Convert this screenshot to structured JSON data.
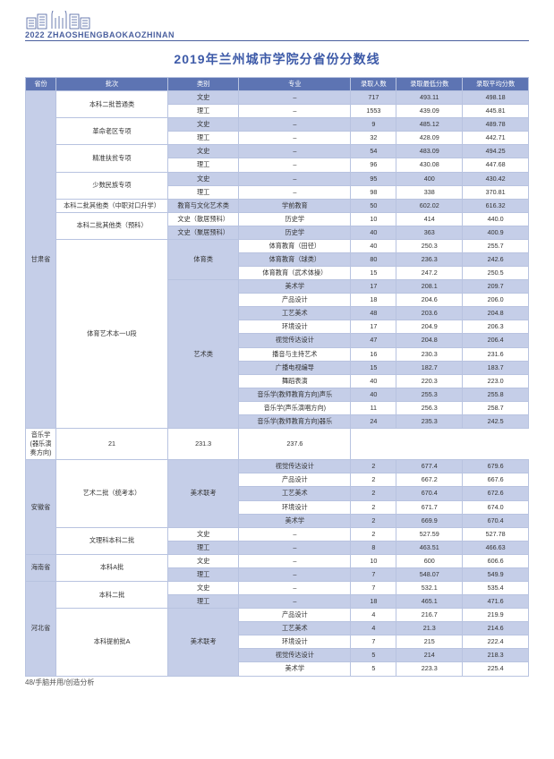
{
  "brand": "2022 ZHAOSHENGBAOKAOZHINAN",
  "title": "2019年兰州城市学院分省份分数线",
  "footer": "48/手脑并用/创造分析",
  "colors": {
    "header_bg": "#5d74b3",
    "shade_bg": "#c5cee8",
    "border": "#b8c3e0",
    "title_color": "#3d5aa8",
    "brand_color": "#4a5f9e"
  },
  "columns": [
    "省份",
    "批次",
    "类别",
    "专业",
    "录取人数",
    "录取最低分数",
    "录取平均分数"
  ],
  "rows": [
    {
      "prov": "甘肃省",
      "prov_span": 25,
      "batch": "本科二批普通类",
      "batch_span": 2,
      "type": "文史",
      "type_span": 1,
      "major": "–",
      "num": "717",
      "min": "493.11",
      "avg": "498.18",
      "shade": true
    },
    {
      "type": "理工",
      "type_span": 1,
      "major": "–",
      "num": "1553",
      "min": "439.09",
      "avg": "445.81",
      "shade": false
    },
    {
      "batch": "革命老区专项",
      "batch_span": 2,
      "type": "文史",
      "type_span": 1,
      "major": "–",
      "num": "9",
      "min": "485.12",
      "avg": "489.78",
      "shade": true
    },
    {
      "type": "理工",
      "type_span": 1,
      "major": "–",
      "num": "32",
      "min": "428.09",
      "avg": "442.71",
      "shade": false
    },
    {
      "batch": "精准扶贫专项",
      "batch_span": 2,
      "type": "文史",
      "type_span": 1,
      "major": "–",
      "num": "54",
      "min": "483.09",
      "avg": "494.25",
      "shade": true
    },
    {
      "type": "理工",
      "type_span": 1,
      "major": "–",
      "num": "96",
      "min": "430.08",
      "avg": "447.68",
      "shade": false
    },
    {
      "batch": "少数民族专项",
      "batch_span": 2,
      "type": "文史",
      "type_span": 1,
      "major": "–",
      "num": "95",
      "min": "400",
      "avg": "430.42",
      "shade": true
    },
    {
      "type": "理工",
      "type_span": 1,
      "major": "–",
      "num": "98",
      "min": "338",
      "avg": "370.81",
      "shade": false
    },
    {
      "batch": "本科二批其他类（中职对口升学）",
      "batch_span": 1,
      "type": "教育与文化艺术类",
      "type_span": 1,
      "major": "学前教育",
      "num": "50",
      "min": "602.02",
      "avg": "616.32",
      "shade": true
    },
    {
      "batch": "本科二批其他类（预科）",
      "batch_span": 2,
      "type": "文史（散居预科）",
      "type_span": 1,
      "major": "历史学",
      "num": "10",
      "min": "414",
      "avg": "440.0",
      "shade": false
    },
    {
      "type": "文史（聚居预科）",
      "type_span": 1,
      "major": "历史学",
      "num": "40",
      "min": "363",
      "avg": "400.9",
      "shade": true
    },
    {
      "batch": "体育艺术本一U段",
      "batch_span": 14,
      "type": "体育类",
      "type_span": 3,
      "major": "体育教育（田径）",
      "num": "40",
      "min": "250.3",
      "avg": "255.7",
      "shade": false
    },
    {
      "major": "体育教育（球类）",
      "num": "80",
      "min": "236.3",
      "avg": "242.6",
      "shade": true
    },
    {
      "major": "体育教育（武术体操）",
      "num": "15",
      "min": "247.2",
      "avg": "250.5",
      "shade": false
    },
    {
      "type": "艺术类",
      "type_span": 11,
      "major": "美术学",
      "num": "17",
      "min": "208.1",
      "avg": "209.7",
      "shade": true
    },
    {
      "major": "产品设计",
      "num": "18",
      "min": "204.6",
      "avg": "206.0",
      "shade": false
    },
    {
      "major": "工艺美术",
      "num": "48",
      "min": "203.6",
      "avg": "204.8",
      "shade": true
    },
    {
      "major": "环境设计",
      "num": "17",
      "min": "204.9",
      "avg": "206.3",
      "shade": false
    },
    {
      "major": "视觉传达设计",
      "num": "47",
      "min": "204.8",
      "avg": "206.4",
      "shade": true
    },
    {
      "major": "播音与主持艺术",
      "num": "16",
      "min": "230.3",
      "avg": "231.6",
      "shade": false
    },
    {
      "major": "广播电视编导",
      "num": "15",
      "min": "182.7",
      "avg": "183.7",
      "shade": true
    },
    {
      "major": "舞蹈表演",
      "num": "40",
      "min": "220.3",
      "avg": "223.0",
      "shade": false
    },
    {
      "major": "音乐学(教师教育方向)声乐",
      "num": "40",
      "min": "255.3",
      "avg": "255.8",
      "shade": true
    },
    {
      "major": "音乐学(声乐演唱方向)",
      "num": "11",
      "min": "256.3",
      "avg": "258.7",
      "shade": false
    },
    {
      "major": "音乐学(教师教育方向)器乐",
      "num": "24",
      "min": "235.3",
      "avg": "242.5",
      "shade": true
    },
    {
      "prov_fill": true,
      "major": "音乐学(器乐演奏方向)",
      "num": "21",
      "min": "231.3",
      "avg": "237.6",
      "shade": false
    },
    {
      "prov": "安徽省",
      "prov_span": 7,
      "batch": "艺术二批（统考本）",
      "batch_span": 5,
      "type": "美术联考",
      "type_span": 5,
      "major": "视觉传达设计",
      "num": "2",
      "min": "677.4",
      "avg": "679.6",
      "shade": true
    },
    {
      "major": "产品设计",
      "num": "2",
      "min": "667.2",
      "avg": "667.6",
      "shade": false
    },
    {
      "major": "工艺美术",
      "num": "2",
      "min": "670.4",
      "avg": "672.6",
      "shade": true
    },
    {
      "major": "环境设计",
      "num": "2",
      "min": "671.7",
      "avg": "674.0",
      "shade": false
    },
    {
      "major": "美术学",
      "num": "2",
      "min": "669.9",
      "avg": "670.4",
      "shade": true
    },
    {
      "batch": "文理科本科二批",
      "batch_span": 2,
      "type": "文史",
      "type_span": 1,
      "major": "–",
      "num": "2",
      "min": "527.59",
      "avg": "527.78",
      "shade": false
    },
    {
      "type": "理工",
      "type_span": 1,
      "major": "–",
      "num": "8",
      "min": "463.51",
      "avg": "466.63",
      "shade": true
    },
    {
      "prov": "海南省",
      "prov_span": 2,
      "batch": "本科A批",
      "batch_span": 2,
      "type": "文史",
      "type_span": 1,
      "major": "–",
      "num": "10",
      "min": "600",
      "avg": "606.6",
      "shade": false
    },
    {
      "type": "理工",
      "type_span": 1,
      "major": "–",
      "num": "7",
      "min": "548.07",
      "avg": "549.9",
      "shade": true
    },
    {
      "prov": "河北省",
      "prov_span": 7,
      "batch": "本科二批",
      "batch_span": 2,
      "type": "文史",
      "type_span": 1,
      "major": "–",
      "num": "7",
      "min": "532.1",
      "avg": "535.4",
      "shade": false
    },
    {
      "type": "理工",
      "type_span": 1,
      "major": "–",
      "num": "18",
      "min": "465.1",
      "avg": "471.6",
      "shade": true
    },
    {
      "batch": "本科提前批A",
      "batch_span": 5,
      "type": "美术联考",
      "type_span": 5,
      "major": "产品设计",
      "num": "4",
      "min": "216.7",
      "avg": "219.9",
      "shade": false
    },
    {
      "major": "工艺美术",
      "num": "4",
      "min": "21.3",
      "avg": "214.6",
      "shade": true
    },
    {
      "major": "环境设计",
      "num": "7",
      "min": "215",
      "avg": "222.4",
      "shade": false
    },
    {
      "major": "视觉传达设计",
      "num": "5",
      "min": "214",
      "avg": "218.3",
      "shade": true
    },
    {
      "major": "美术学",
      "num": "5",
      "min": "223.3",
      "avg": "225.4",
      "shade": false
    }
  ]
}
